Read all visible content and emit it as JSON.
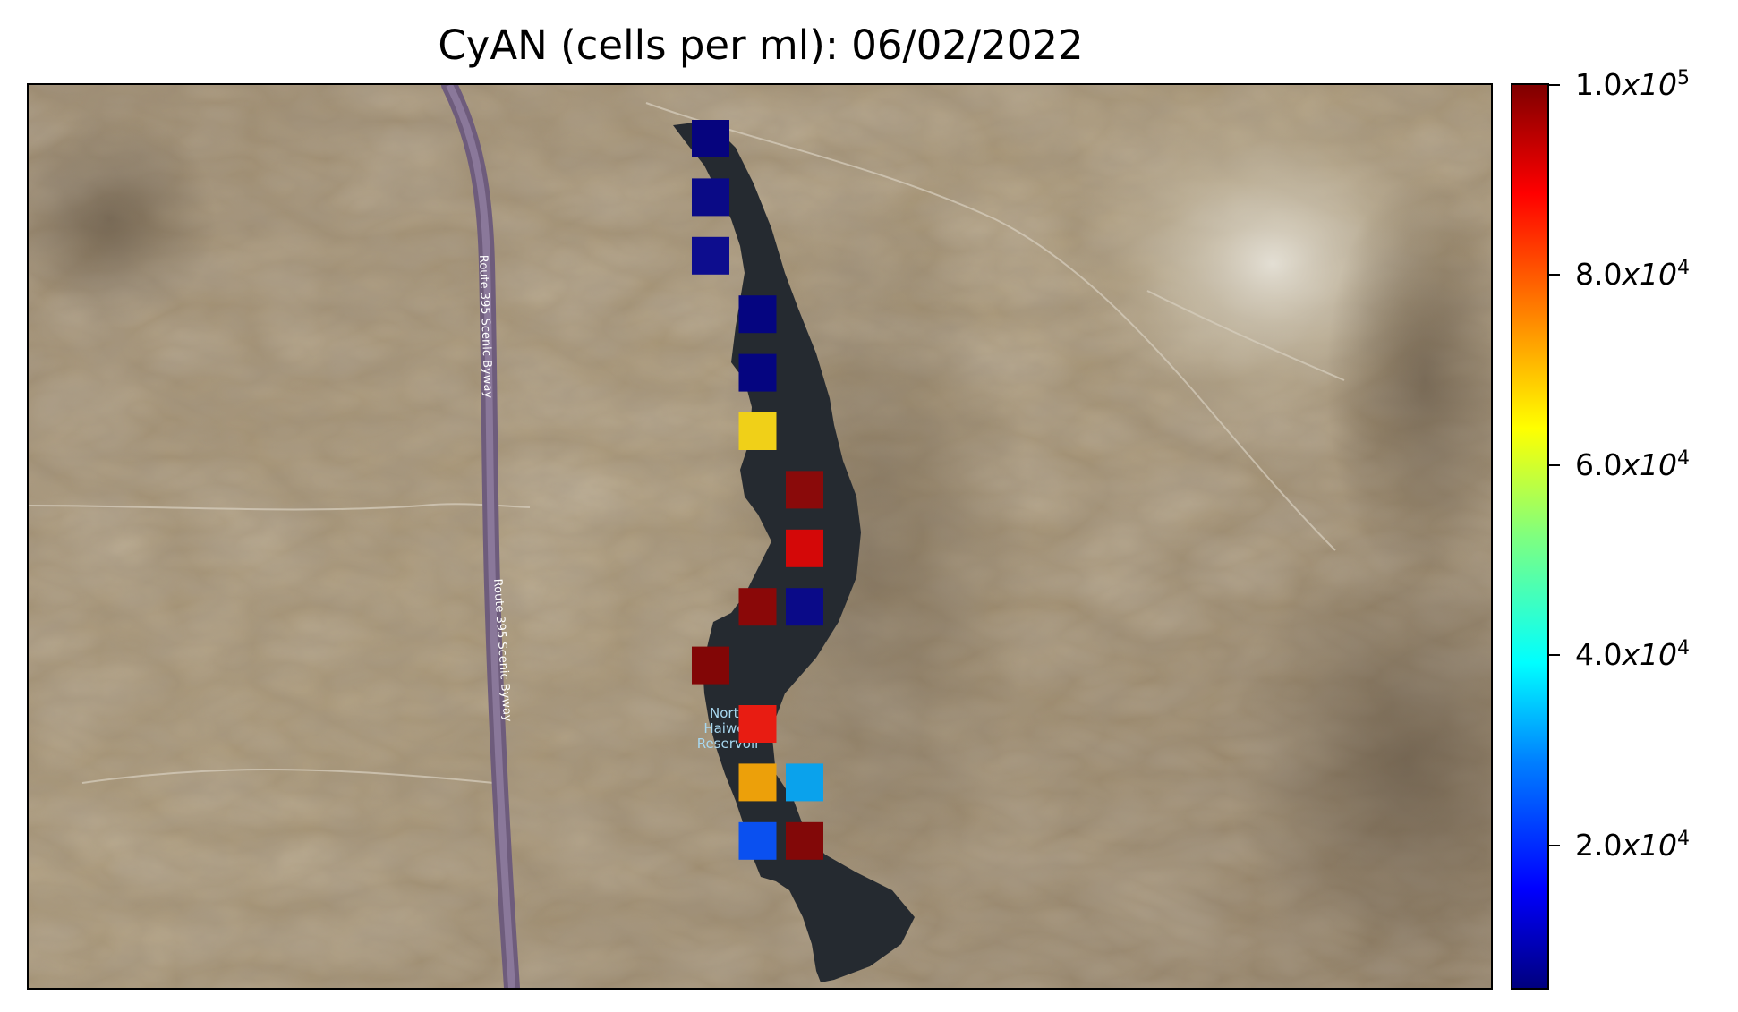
{
  "title": "CyAN (cells per ml): 06/02/2022",
  "map": {
    "basemap": "satellite-desert-terrain",
    "labels": {
      "road_1": "Route 395 Scenic Byway",
      "road_2": "Route 395 Scenic Byway",
      "reservoir": [
        "North",
        "Haiwee",
        "Reservoir"
      ]
    },
    "colors": {
      "water": "#252a30",
      "road": "#7a6a86",
      "terrain": "#a08e72"
    }
  },
  "colorbar": {
    "colormap": "jet",
    "min": 5000,
    "max": 100000,
    "ticks": [
      {
        "value": 100000,
        "mantissa": "1.0",
        "exp": "5"
      },
      {
        "value": 80000,
        "mantissa": "8.0",
        "exp": "4"
      },
      {
        "value": 60000,
        "mantissa": "6.0",
        "exp": "4"
      },
      {
        "value": 40000,
        "mantissa": "4.0",
        "exp": "4"
      },
      {
        "value": 20000,
        "mantissa": "2.0",
        "exp": "4"
      }
    ]
  },
  "samples": [
    {
      "row": 0,
      "col": 0,
      "color": "#06047e"
    },
    {
      "row": 1,
      "col": 0,
      "color": "#0a0a86"
    },
    {
      "row": 2,
      "col": 0,
      "color": "#0d0d8e"
    },
    {
      "row": 3,
      "col": 1,
      "color": "#050580"
    },
    {
      "row": 4,
      "col": 1,
      "color": "#050580"
    },
    {
      "row": 5,
      "col": 1,
      "color": "#f0d018"
    },
    {
      "row": 6,
      "col": 2,
      "color": "#8a0a0a"
    },
    {
      "row": 7,
      "col": 2,
      "color": "#d40808"
    },
    {
      "row": 8,
      "col": 1,
      "color": "#8a0808"
    },
    {
      "row": 8,
      "col": 2,
      "color": "#0a0a88"
    },
    {
      "row": 9,
      "col": 0,
      "color": "#820606"
    },
    {
      "row": 10,
      "col": 1,
      "color": "#e81c12"
    },
    {
      "row": 11,
      "col": 1,
      "color": "#eca00a"
    },
    {
      "row": 11,
      "col": 2,
      "color": "#0aa2ec"
    },
    {
      "row": 12,
      "col": 1,
      "color": "#0a50f0"
    },
    {
      "row": 12,
      "col": 2,
      "color": "#820808"
    }
  ]
}
